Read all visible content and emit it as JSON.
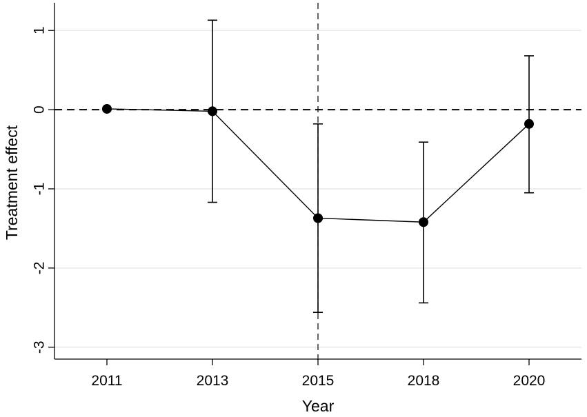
{
  "chart_data": {
    "type": "scatter",
    "title": "",
    "xlabel": "Year",
    "ylabel": "Treatment effect",
    "categories": [
      "2011",
      "2013",
      "2015",
      "2018",
      "2020"
    ],
    "y_ticks": [
      "1",
      "0",
      "-1",
      "-2",
      "-3"
    ],
    "ylim": [
      -3.15,
      1.35
    ],
    "grid": "horizontal",
    "reference_lines": {
      "horizontal_y": 0,
      "vertical_at": "2015"
    },
    "series": [
      {
        "estimates": [
          0.01,
          -0.02,
          -1.37,
          -1.42,
          -0.18
        ],
        "ci_lower": [
          0.01,
          -1.17,
          -2.56,
          -2.44,
          -1.05
        ],
        "ci_upper": [
          0.01,
          1.13,
          -0.18,
          -0.41,
          0.68
        ]
      }
    ],
    "colors": {
      "marker": "#000000",
      "line": "#000000",
      "grid": "#e3ebee"
    }
  }
}
